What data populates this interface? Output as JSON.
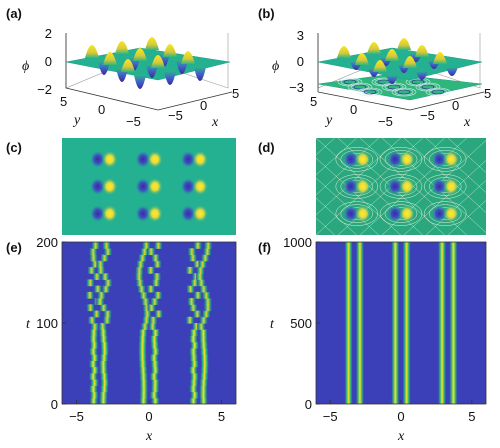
{
  "colors": {
    "bg_teal": "#23b191",
    "low_blue": "#3b3fb8",
    "deep_blue": "#3a2aa0",
    "high_yellow": "#f4e61e",
    "mid_green": "#2fb67c",
    "axis": "#222222"
  },
  "chart_data": [
    {
      "panel": "(a)",
      "type": "surface",
      "zlabel": "ϕ",
      "xlabel": "x",
      "ylabel": "y",
      "x_ticks": [
        "−5",
        "0",
        "5"
      ],
      "y_ticks": [
        "5",
        "0",
        "−5"
      ],
      "z_ticks": [
        "2",
        "0",
        "−2"
      ],
      "zlim": [
        -2,
        2
      ],
      "x_range": [
        -5,
        5
      ],
      "y_range": [
        -5,
        5
      ]
    },
    {
      "panel": "(b)",
      "type": "surface",
      "zlabel": "ϕ",
      "xlabel": "x",
      "ylabel": "y",
      "x_ticks": [
        "−5",
        "0",
        "5"
      ],
      "y_ticks": [
        "5",
        "0",
        "−5"
      ],
      "z_ticks": [
        "3",
        "0",
        "−3"
      ],
      "zlim": [
        -3,
        3
      ],
      "x_range": [
        -5,
        5
      ],
      "y_range": [
        -5,
        5
      ]
    },
    {
      "panel": "(c)",
      "type": "heatmap",
      "lattice_rows": 3,
      "lattice_cols": 3
    },
    {
      "panel": "(d)",
      "type": "heatmap",
      "lattice_rows": 3,
      "lattice_cols": 3
    },
    {
      "panel": "(e)",
      "type": "heatmap",
      "xlabel": "x",
      "ylabel": "t",
      "x_ticks": [
        "−5",
        "0",
        "5"
      ],
      "y_ticks": [
        "200",
        "100",
        "0"
      ],
      "xlim": [
        -6,
        6
      ],
      "ylim": [
        0,
        200
      ],
      "stripe_centers": [
        -3.8,
        -3.1,
        -0.4,
        0.4,
        3.1,
        3.8
      ]
    },
    {
      "panel": "(f)",
      "type": "heatmap",
      "xlabel": "x",
      "ylabel": "t",
      "x_ticks": [
        "−5",
        "0",
        "5"
      ],
      "y_ticks": [
        "1000",
        "500",
        "0"
      ],
      "xlim": [
        -6,
        6
      ],
      "ylim": [
        0,
        1000
      ],
      "stripe_centers": [
        -3.7,
        -2.9,
        -0.4,
        0.4,
        2.9,
        3.7
      ]
    }
  ]
}
